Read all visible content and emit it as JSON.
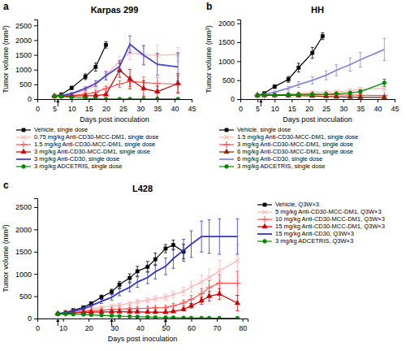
{
  "chart_data": [
    {
      "type": "line",
      "panel_label": "a",
      "title": "Karpas 299",
      "x_label": "Days post inoculation",
      "y_label": "Tumor volume (mm³)",
      "xlim": [
        0,
        45
      ],
      "ylim": [
        0,
        2700
      ],
      "xticks": [
        0,
        5,
        10,
        15,
        20,
        25,
        30,
        35,
        40,
        45
      ],
      "yticks": [
        0,
        500,
        1000,
        1500,
        2000,
        2500
      ],
      "grid": false,
      "legend": "bottom",
      "arrows": [
        6
      ],
      "series": [
        {
          "name": "Vehicle, single dose",
          "color": "#000000",
          "marker": "square",
          "x": [
            5,
            7,
            10,
            14,
            17,
            20
          ],
          "values": [
            100,
            160,
            380,
            760,
            1090,
            1840
          ],
          "errors": [
            8,
            25,
            55,
            95,
            140,
            110
          ]
        },
        {
          "name": "0.75 mg/kg Anti-CD30-MCC-DM1, single dose",
          "color": "#ffb3b3",
          "marker": "x",
          "x": [
            5,
            7,
            10,
            14,
            17,
            20,
            24,
            27,
            31,
            35,
            41
          ],
          "values": [
            100,
            115,
            160,
            300,
            470,
            820,
            1280,
            1580,
            1500,
            1490,
            1510
          ],
          "errors": [
            8,
            18,
            28,
            55,
            85,
            140,
            180,
            230,
            290,
            340,
            240
          ]
        },
        {
          "name": "1.5 mg/kg Anti-CD30-MCC-DM1, single dose",
          "color": "#ff5555",
          "marker": "plus",
          "x": [
            5,
            7,
            10,
            14,
            17,
            20,
            24,
            27,
            31,
            35,
            41
          ],
          "values": [
            100,
            108,
            125,
            170,
            230,
            360,
            510,
            600,
            560,
            530,
            510
          ],
          "errors": [
            8,
            12,
            18,
            35,
            55,
            75,
            115,
            170,
            190,
            210,
            290
          ]
        },
        {
          "name": "3 mg/kg Anti-CD30-MCC-DM1, single dose",
          "color": "#cc0000",
          "marker": "triangle",
          "x": [
            5,
            7,
            10,
            14,
            17,
            20,
            24,
            27,
            31,
            35,
            41
          ],
          "values": [
            100,
            102,
            106,
            112,
            122,
            155,
            980,
            680,
            360,
            250,
            530
          ],
          "errors": [
            8,
            10,
            12,
            18,
            22,
            38,
            240,
            330,
            260,
            190,
            330
          ]
        },
        {
          "name": "3 mg/kg Anti-CD30, single dose",
          "color": "#4444cc",
          "marker": "none",
          "x": [
            5,
            7,
            10,
            14,
            17,
            20,
            24,
            27,
            31,
            35,
            41
          ],
          "values": [
            100,
            122,
            190,
            360,
            530,
            790,
            1110,
            1860,
            1490,
            1180,
            1090
          ],
          "errors": [
            8,
            18,
            28,
            55,
            95,
            140,
            190,
            280,
            330,
            370,
            480
          ]
        },
        {
          "name": "3 mg/kg ADCETRIS, single dose",
          "color": "#008800",
          "marker": "circle",
          "x": [
            5,
            7,
            10,
            14,
            17,
            20,
            24,
            27,
            31,
            35,
            41
          ],
          "values": [
            100,
            92,
            62,
            28,
            8,
            3,
            2,
            2,
            2,
            2,
            5
          ],
          "errors": [
            8,
            9,
            9,
            8,
            4,
            2,
            2,
            2,
            2,
            2,
            3
          ]
        }
      ]
    },
    {
      "type": "line",
      "panel_label": "b",
      "title": "HH",
      "x_label": "Days post inoculation",
      "y_label": "Tumor volume (mm³)",
      "xlim": [
        0,
        45
      ],
      "ylim": [
        0,
        2100
      ],
      "xticks": [
        0,
        5,
        10,
        15,
        20,
        25,
        30,
        35,
        40,
        45
      ],
      "yticks": [
        0,
        500,
        1000,
        1500,
        2000
      ],
      "grid": false,
      "legend": "bottom",
      "arrows": [
        6
      ],
      "series": [
        {
          "name": "Vehicle, single dose",
          "color": "#000000",
          "marker": "square",
          "x": [
            5,
            7,
            10,
            14,
            17,
            21,
            24
          ],
          "values": [
            99,
            155,
            330,
            520,
            830,
            1220,
            1660
          ],
          "errors": [
            8,
            22,
            48,
            75,
            115,
            145,
            90
          ]
        },
        {
          "name": "1.5 mg/kg Anti-CD30-MCC-DM1, single dose",
          "color": "#ffb3b3",
          "marker": "x",
          "x": [
            5,
            7,
            10,
            14,
            17,
            21,
            25,
            28,
            32,
            35,
            42
          ],
          "values": [
            99,
            108,
            118,
            132,
            155,
            175,
            185,
            195,
            225,
            260,
            280
          ],
          "errors": [
            8,
            10,
            13,
            18,
            23,
            28,
            32,
            38,
            42,
            48,
            55
          ]
        },
        {
          "name": "3 mg/kg Anti-CD30-MCC-DM1, single dose",
          "color": "#ff4444",
          "marker": "plus",
          "x": [
            5,
            7,
            10,
            14,
            17,
            21,
            25,
            28,
            32,
            35,
            42
          ],
          "values": [
            99,
            103,
            110,
            118,
            122,
            128,
            118,
            112,
            107,
            102,
            92
          ],
          "errors": [
            8,
            10,
            13,
            16,
            18,
            20,
            18,
            16,
            16,
            16,
            18
          ]
        },
        {
          "name": "6 mg/kg Anti-CD30-MCC-DM1, single dose",
          "color": "#882200",
          "marker": "triangle",
          "x": [
            5,
            7,
            10,
            14,
            17,
            21,
            25,
            28,
            32,
            35,
            42
          ],
          "values": [
            99,
            100,
            100,
            96,
            91,
            82,
            72,
            62,
            55,
            50,
            45
          ],
          "errors": [
            8,
            10,
            10,
            10,
            10,
            10,
            10,
            8,
            8,
            8,
            8
          ]
        },
        {
          "name": "6 mg/kg Anti-CD30, single dose",
          "color": "#8888dd",
          "marker": "none",
          "x": [
            5,
            7,
            10,
            14,
            17,
            21,
            25,
            28,
            32,
            35,
            42
          ],
          "values": [
            99,
            122,
            185,
            285,
            385,
            495,
            630,
            760,
            910,
            1040,
            1310
          ],
          "errors": [
            8,
            18,
            28,
            48,
            75,
            95,
            115,
            145,
            175,
            195,
            290
          ]
        },
        {
          "name": "3 mg/kg ADCETRIS, single dose",
          "color": "#008800",
          "marker": "circle",
          "x": [
            5,
            7,
            10,
            14,
            17,
            21,
            25,
            28,
            32,
            35,
            42
          ],
          "values": [
            99,
            108,
            112,
            118,
            123,
            128,
            133,
            143,
            163,
            195,
            430
          ],
          "errors": [
            8,
            10,
            13,
            16,
            18,
            20,
            23,
            28,
            38,
            48,
            95
          ]
        }
      ]
    },
    {
      "type": "line",
      "panel_label": "c",
      "title": "L428",
      "x_label": "Days post inoculation",
      "y_label": "Tumor volume (mm³)",
      "xlim": [
        0,
        82
      ],
      "ylim": [
        0,
        2700
      ],
      "xticks": [
        0,
        10,
        20,
        30,
        40,
        50,
        60,
        70,
        80
      ],
      "yticks": [
        0,
        500,
        1000,
        1500,
        2000,
        2500
      ],
      "grid": false,
      "legend": "right",
      "arrows": [
        8,
        29,
        50
      ],
      "series": [
        {
          "name": "Vehicle, Q3W×3",
          "color": "#000000",
          "marker": "square",
          "x": [
            8,
            11,
            14,
            18,
            21,
            25,
            29,
            32,
            36,
            39,
            43,
            46,
            50,
            53,
            57
          ],
          "values": [
            106,
            135,
            185,
            250,
            340,
            480,
            600,
            760,
            910,
            1060,
            1160,
            1330,
            1570,
            1650,
            1500
          ],
          "errors": [
            8,
            12,
            18,
            22,
            30,
            45,
            58,
            72,
            92,
            110,
            120,
            140,
            92,
            110,
            165
          ]
        },
        {
          "name": "5 mg/kg Anti-CD30-MCC-DM1, Q3W×3",
          "color": "#ffb3b3",
          "marker": "x",
          "x": [
            8,
            11,
            14,
            18,
            21,
            25,
            29,
            32,
            36,
            39,
            43,
            46,
            50,
            53,
            57,
            60,
            64,
            67,
            71,
            78
          ],
          "values": [
            106,
            122,
            148,
            175,
            208,
            248,
            278,
            308,
            338,
            378,
            408,
            448,
            478,
            538,
            608,
            712,
            818,
            920,
            1068,
            1300
          ],
          "errors": [
            8,
            10,
            13,
            16,
            20,
            25,
            29,
            33,
            39,
            47,
            53,
            62,
            69,
            82,
            96,
            125,
            154,
            192,
            242,
            370
          ]
        },
        {
          "name": "10 mg/kg Anti-CD30-MCC-DM1, Q3W×3",
          "color": "#ff5555",
          "marker": "plus",
          "x": [
            8,
            11,
            14,
            18,
            21,
            25,
            29,
            32,
            36,
            39,
            43,
            46,
            50,
            53,
            57,
            60,
            64,
            67,
            71,
            78
          ],
          "values": [
            106,
            120,
            138,
            156,
            172,
            190,
            200,
            210,
            218,
            226,
            230,
            240,
            245,
            285,
            350,
            430,
            555,
            695,
            795,
            790
          ],
          "errors": [
            8,
            10,
            13,
            16,
            18,
            20,
            22,
            24,
            26,
            28,
            30,
            33,
            36,
            48,
            62,
            87,
            116,
            154,
            193,
            270
          ]
        },
        {
          "name": "15 mg/kg Anti-CD30-MCC-DM1, Q3W×3",
          "color": "#cc0000",
          "marker": "triangle",
          "x": [
            8,
            11,
            14,
            18,
            21,
            25,
            29,
            32,
            36,
            39,
            43,
            46,
            50,
            53,
            57,
            60,
            64,
            67,
            71,
            78
          ],
          "values": [
            106,
            116,
            127,
            135,
            142,
            147,
            150,
            152,
            150,
            147,
            144,
            142,
            140,
            158,
            205,
            285,
            398,
            500,
            550,
            345
          ],
          "errors": [
            8,
            10,
            11,
            13,
            14,
            15,
            16,
            16,
            16,
            16,
            16,
            16,
            16,
            20,
            32,
            52,
            77,
            106,
            125,
            173
          ]
        },
        {
          "name": "15 mg/kg Anti-CD30, Q3W×3",
          "color": "#3333cc",
          "marker": "none",
          "x": [
            8,
            11,
            14,
            18,
            21,
            25,
            29,
            32,
            36,
            39,
            43,
            46,
            50,
            53,
            57,
            60,
            64,
            67,
            71,
            78
          ],
          "values": [
            106,
            128,
            165,
            218,
            290,
            385,
            475,
            588,
            700,
            820,
            920,
            1050,
            1170,
            1345,
            1530,
            1670,
            1840,
            1840,
            1840,
            1840
          ],
          "errors": [
            8,
            13,
            18,
            26,
            35,
            48,
            62,
            77,
            97,
            117,
            137,
            162,
            187,
            218,
            248,
            298,
            348,
            378,
            398,
            398
          ]
        },
        {
          "name": "3 mg/kg ADCETRIS, Q3W×3",
          "color": "#008800",
          "marker": "circle",
          "x": [
            8,
            11,
            14,
            18,
            21,
            25,
            29,
            32,
            36,
            39,
            43,
            46,
            50,
            53,
            57,
            60,
            64,
            67,
            71,
            78
          ],
          "values": [
            106,
            102,
            96,
            89,
            81,
            71,
            63,
            53,
            46,
            39,
            33,
            27,
            23,
            19,
            16,
            13,
            11,
            10,
            9,
            9
          ],
          "errors": [
            8,
            8,
            8,
            8,
            8,
            7,
            6,
            5,
            5,
            4,
            4,
            3,
            3,
            3,
            2,
            2,
            2,
            2,
            2,
            2
          ]
        }
      ]
    }
  ]
}
